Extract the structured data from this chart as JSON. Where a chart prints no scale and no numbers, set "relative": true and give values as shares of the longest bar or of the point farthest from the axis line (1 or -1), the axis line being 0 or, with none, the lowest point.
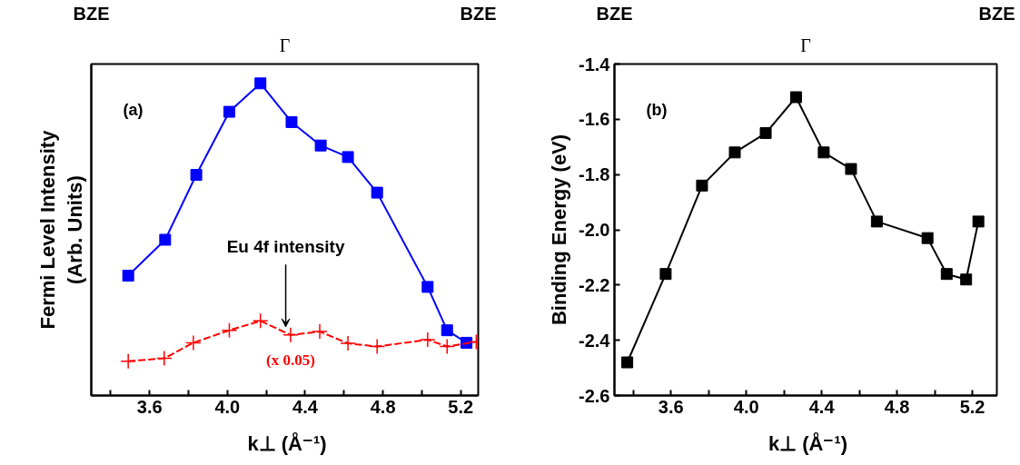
{
  "chart_data": [
    {
      "type": "line",
      "relative": true,
      "xlabel": "k⊥ (Å⁻¹)",
      "ylabel": "Fermi Level Intensity\n(Arb. Units)",
      "xlim": [
        3.3,
        5.29
      ],
      "xticks": [
        {
          "value": 3.4,
          "label": null
        },
        3.6,
        {
          "value": 3.8,
          "label": null
        },
        {
          "value": 4.0,
          "label": "4.0"
        },
        {
          "value": 4.2,
          "label": null
        },
        4.4,
        {
          "value": 4.6,
          "label": null
        },
        4.8,
        {
          "value": 5.0,
          "label": null
        },
        5.2
      ],
      "grid": false,
      "series": [
        {
          "color": "#0000ff",
          "marker": "square",
          "line_style": "solid",
          "x": [
            3.49,
            3.68,
            3.84,
            4.01,
            4.17,
            4.33,
            4.48,
            4.62,
            4.77,
            5.03,
            5.13,
            5.23
          ],
          "values": [
            0.384,
            0.499,
            0.707,
            0.909,
            1.0,
            0.876,
            0.801,
            0.764,
            0.65,
            0.348,
            0.209,
            0.169
          ]
        },
        {
          "name": "(x 0.05)",
          "color": "#ff0000",
          "marker": "cross",
          "line_style": "dashed",
          "x": [
            3.49,
            3.675,
            3.825,
            4.01,
            4.17,
            4.325,
            4.475,
            4.62,
            4.77,
            5.03,
            5.13,
            5.28
          ],
          "values": [
            0.11,
            0.119,
            0.169,
            0.209,
            0.239,
            0.194,
            0.205,
            0.167,
            0.157,
            0.179,
            0.157,
            0.172
          ]
        }
      ],
      "annotations": [
        "BZE",
        "Γ",
        "BZE",
        "(a)",
        {
          "text": "Eu 4f intensity",
          "x": 4.3,
          "y": 0.22
        }
      ]
    },
    {
      "type": "line",
      "xlabel": "k⊥ (Å⁻¹)",
      "ylabel": "Binding Energy (eV)",
      "xlim": [
        3.3,
        5.33
      ],
      "ylim": [
        -2.6,
        -1.4
      ],
      "xticks": [
        {
          "value": 3.4,
          "label": null
        },
        3.6,
        {
          "value": 3.8,
          "label": null
        },
        {
          "value": 4.0,
          "label": "4.0"
        },
        {
          "value": 4.2,
          "label": null
        },
        4.4,
        {
          "value": 4.6,
          "label": null
        },
        4.8,
        {
          "value": 5.0,
          "label": null
        },
        5.2
      ],
      "yticks": [
        -2.6,
        -2.4,
        -2.2,
        {
          "value": -2.0,
          "label": "-2.0"
        },
        -1.8,
        -1.6,
        -1.4
      ],
      "grid": false,
      "marker": "square",
      "line_style": "solid",
      "series": [
        {
          "color": "#000000",
          "x": [
            3.368,
            3.572,
            3.765,
            3.939,
            4.103,
            4.264,
            4.411,
            4.556,
            4.693,
            4.962,
            5.064,
            5.167,
            5.232
          ],
          "values": [
            -2.48,
            -2.16,
            -1.84,
            -1.72,
            -1.65,
            -1.52,
            -1.72,
            -1.78,
            -1.97,
            -2.03,
            -2.16,
            -2.18,
            -1.97
          ]
        }
      ],
      "annotations": [
        "BZE",
        "Γ",
        "BZE",
        "(b)"
      ]
    }
  ]
}
